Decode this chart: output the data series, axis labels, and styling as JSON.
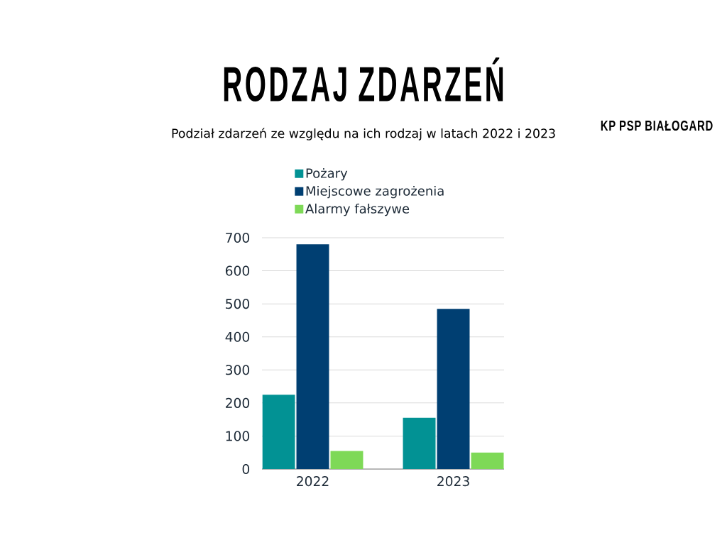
{
  "chart_data": {
    "type": "bar",
    "title": "RODZAJ ZDARZEŃ",
    "subtitle": "Podział zdarzeń ze względu na ich rodzaj w latach 2022 i 2023",
    "annotations": [
      "KP PSP BIAŁOGARD"
    ],
    "categories": [
      "2022",
      "2023"
    ],
    "series": [
      {
        "name": "Pożary",
        "color": "#029294",
        "values": [
          225,
          155
        ]
      },
      {
        "name": "Miejscowe zagrożenia",
        "color": "#003f72",
        "values": [
          680,
          485
        ]
      },
      {
        "name": "Alarmy fałszywe",
        "color": "#7ed957",
        "values": [
          55,
          50
        ]
      }
    ],
    "ylim": [
      0,
      700
    ],
    "yticks": [
      0,
      100,
      200,
      300,
      400,
      500,
      600,
      700
    ],
    "grid": "y",
    "legend": "top"
  }
}
